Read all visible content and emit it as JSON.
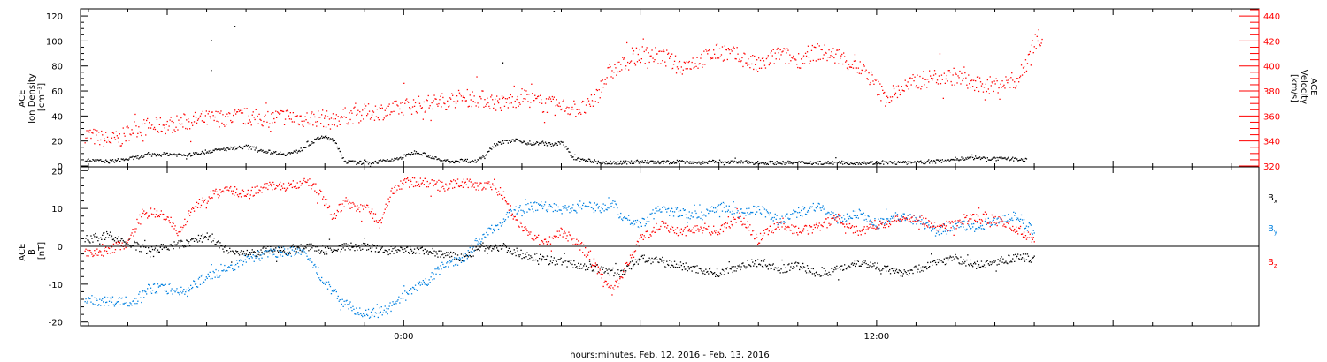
{
  "xlabel": "hours:minutes, Feb. 12, 2016 - Feb. 13, 2016",
  "x_range_hours": [
    -8.2,
    21.7
  ],
  "x_tick_labels": [
    {
      "hour": 0,
      "label": "0:00"
    },
    {
      "hour": 12,
      "label": "12:00"
    }
  ],
  "chart_data": [
    {
      "type": "scatter",
      "panel": "top",
      "ylabel_left": [
        "ACE",
        "Ion Density",
        "[cm⁻³]"
      ],
      "ylabel_right": [
        "ACE",
        "Velocity",
        "[km/s]"
      ],
      "ylim_left": [
        0,
        125
      ],
      "ylim_right": [
        320,
        445
      ],
      "yticks_left": [
        0,
        20,
        40,
        60,
        80,
        100,
        120
      ],
      "yticks_right": [
        320,
        340,
        360,
        380,
        400,
        420,
        440
      ],
      "series": [
        {
          "axis": "left",
          "color": "#000000",
          "x": [
            -8.1,
            -7.5,
            -7,
            -6.5,
            -6,
            -5.5,
            -5,
            -4.5,
            -4,
            -3.5,
            -3,
            -2.7,
            -2.4,
            -2.1,
            -1.8,
            -1.5,
            -1.2,
            -0.9,
            -0.6,
            -0.3,
            0,
            0.3,
            0.6,
            0.9,
            1.2,
            1.5,
            1.8,
            2,
            2.3,
            2.6,
            2.9,
            3.2,
            3.5,
            3.8,
            4,
            4.3,
            4.6,
            4.8,
            5,
            5.5,
            6,
            6.5,
            7,
            7.5,
            8,
            9,
            10,
            11,
            12,
            13,
            13.5,
            14,
            14.5,
            15,
            15.5,
            15.8
          ],
          "y": [
            5,
            4,
            6,
            9,
            10,
            9,
            12,
            14,
            16,
            12,
            10,
            12,
            18,
            24,
            22,
            4,
            3,
            3,
            4,
            5,
            8,
            12,
            9,
            5,
            4,
            5,
            4,
            8,
            18,
            20,
            21,
            18,
            19,
            17,
            20,
            6,
            5,
            4,
            3,
            3,
            4,
            3,
            4,
            3,
            4,
            3,
            3,
            3,
            3,
            3,
            4,
            6,
            7,
            6,
            6,
            5
          ],
          "outliers_x": [
            -4.9,
            -4.9,
            -4.3,
            3.8,
            2.5
          ],
          "outliers_y": [
            101,
            77,
            112,
            124,
            83
          ]
        },
        {
          "axis": "right",
          "color": "#ff0000",
          "x": [
            -8.1,
            -7.8,
            -7.5,
            -7.2,
            -6.9,
            -6.5,
            -6,
            -5.5,
            -5,
            -4.5,
            -4,
            -3.5,
            -3,
            -2.5,
            -2.1,
            -1.8,
            -1.6,
            -1.3,
            -1,
            -0.7,
            -0.3,
            0,
            0.5,
            1,
            1.5,
            2,
            2.5,
            3,
            3.5,
            4,
            4.5,
            4.7,
            4.9,
            5.2,
            5.5,
            6,
            6.5,
            7,
            7.5,
            8,
            8.5,
            9,
            9.5,
            10,
            10.5,
            11,
            11.5,
            11.8,
            12.2,
            12.6,
            13,
            13.5,
            14,
            14.5,
            15,
            15.3,
            15.6,
            16,
            16.2
          ],
          "y": [
            346,
            343,
            341,
            342,
            350,
            352,
            353,
            356,
            358,
            359,
            360,
            358,
            360,
            358,
            359,
            356,
            360,
            361,
            363,
            364,
            365,
            368,
            370,
            372,
            375,
            374,
            370,
            376,
            370,
            368,
            366,
            368,
            378,
            395,
            400,
            410,
            408,
            400,
            405,
            412,
            408,
            400,
            410,
            405,
            412,
            408,
            400,
            392,
            375,
            382,
            388,
            392,
            392,
            385,
            385,
            387,
            390,
            420,
            425
          ]
        }
      ]
    },
    {
      "type": "scatter",
      "panel": "bottom",
      "ylabel_left": [
        "ACE",
        "B",
        "[nT]"
      ],
      "ylim": [
        -21,
        21
      ],
      "yticks": [
        -20,
        -10,
        0,
        10,
        20
      ],
      "zero_line": true,
      "legend_placement": "right",
      "series": [
        {
          "name": "B",
          "subscript": "x",
          "color": "#000000",
          "x": [
            -8.1,
            -7.5,
            -7,
            -6.5,
            -6,
            -5.5,
            -5,
            -4.5,
            -4,
            -3.5,
            -3,
            -2.5,
            -2,
            -1.5,
            -1,
            -0.5,
            0,
            0.5,
            1,
            1.5,
            2,
            2.5,
            3,
            3.5,
            4,
            4.5,
            5,
            5.5,
            6,
            6.5,
            7,
            7.5,
            8,
            8.5,
            9,
            9.5,
            10,
            10.5,
            11,
            11.5,
            12,
            12.5,
            13,
            13.5,
            14,
            14.5,
            15,
            15.5,
            16
          ],
          "y": [
            2,
            3,
            1,
            -1,
            0,
            1,
            3,
            -1,
            -2,
            -1,
            -1,
            0,
            -1,
            0,
            0,
            -1,
            -1,
            -1,
            -2,
            -3,
            0,
            0,
            -2,
            -3,
            -4,
            -5,
            -6,
            -7,
            -3,
            -4,
            -5,
            -6,
            -7,
            -5,
            -4,
            -6,
            -5,
            -7,
            -6,
            -4,
            -5,
            -7,
            -6,
            -4,
            -3,
            -5,
            -4,
            -3,
            -3
          ]
        },
        {
          "name": "B",
          "subscript": "y",
          "color": "#0080e0",
          "x": [
            -8.1,
            -7.5,
            -7,
            -6.8,
            -6.5,
            -6,
            -5.5,
            -5.2,
            -5,
            -4.5,
            -4,
            -3.5,
            -3,
            -2.5,
            -2.1,
            -1.8,
            -1.5,
            -1,
            -0.5,
            -0.2,
            0,
            0.3,
            0.6,
            1,
            1.5,
            2,
            2.3,
            2.7,
            3,
            3.5,
            4,
            4.5,
            5,
            5.3,
            5.5,
            6,
            6.5,
            7,
            7.5,
            8,
            8.5,
            9,
            9.5,
            10,
            10.5,
            11,
            11.5,
            12,
            12.5,
            13,
            13.5,
            14,
            14.5,
            15,
            15.5,
            16
          ],
          "y": [
            -14,
            -14.5,
            -14.5,
            -14,
            -11,
            -11,
            -12,
            -9,
            -8,
            -6,
            -3,
            -2,
            -1,
            -2,
            -8,
            -12,
            -15,
            -18,
            -17,
            -15,
            -13,
            -11,
            -9,
            -5,
            -3,
            3,
            5,
            9,
            10,
            11,
            10,
            11,
            10,
            12,
            8,
            6,
            10,
            9,
            8,
            11,
            9,
            10,
            7,
            9,
            11,
            7,
            9,
            6,
            8,
            7,
            4,
            6,
            5,
            7,
            8,
            4
          ]
        },
        {
          "name": "B",
          "subscript": "z",
          "color": "#ff0000",
          "x": [
            -8.1,
            -7.7,
            -7.3,
            -7,
            -6.7,
            -6.4,
            -6,
            -5.7,
            -5.4,
            -5.1,
            -4.8,
            -4.5,
            -4,
            -3.5,
            -3,
            -2.7,
            -2.4,
            -2.1,
            -1.8,
            -1.5,
            -1.2,
            -0.9,
            -0.6,
            -0.3,
            0,
            0.5,
            1,
            1.5,
            2,
            2.2,
            2.5,
            2.8,
            3.2,
            3.6,
            4,
            4.5,
            4.8,
            5,
            5.3,
            5.5,
            6,
            6.5,
            7,
            7.5,
            8,
            8.5,
            9,
            9.5,
            10,
            10.5,
            11,
            11.5,
            12,
            12.5,
            13,
            13.5,
            14,
            14.5,
            15,
            15.5,
            16
          ],
          "y": [
            -1,
            -2,
            0,
            1,
            8,
            9,
            8,
            3,
            10,
            12,
            14,
            15,
            14,
            16,
            16,
            16.5,
            17,
            14,
            8,
            12,
            10,
            10,
            6,
            15,
            17,
            17,
            16,
            17,
            16,
            16,
            14,
            8,
            3,
            1,
            4,
            0,
            -4,
            -8,
            -12,
            -8,
            2,
            6,
            4,
            5,
            4,
            8,
            2,
            6,
            4,
            5,
            8,
            4,
            6,
            7,
            8,
            5,
            6,
            8,
            7,
            5,
            2
          ]
        }
      ]
    }
  ]
}
